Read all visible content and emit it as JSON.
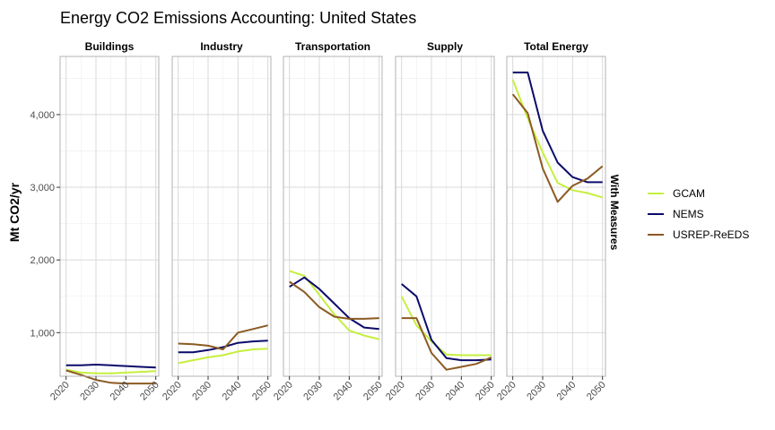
{
  "chart_data": {
    "type": "line",
    "title": "Energy CO2 Emissions Accounting: United States",
    "ylabel": "Mt CO2/yr",
    "row_label": "With Measures",
    "ylim": [
      400,
      4800
    ],
    "y_ticks": [
      1000,
      2000,
      3000,
      4000
    ],
    "y_tick_labels": [
      "1,000",
      "2,000",
      "3,000",
      "4,000"
    ],
    "x_ticks": [
      2020,
      2030,
      2040,
      2050
    ],
    "x_tick_labels": [
      "2020",
      "2030",
      "2040",
      "2050"
    ],
    "xlim": [
      2018,
      2051
    ],
    "grid": true,
    "legend_position": "right",
    "colors": {
      "GCAM": "#c6ef3e",
      "NEMS": "#0b0b6b",
      "USREP-ReEDS": "#8b5a22"
    },
    "panels": [
      {
        "name": "Buildings",
        "series": [
          {
            "name": "GCAM",
            "x": [
              2020,
              2025,
              2030,
              2035,
              2040,
              2045,
              2050
            ],
            "values": [
              490,
              450,
              440,
              440,
              450,
              460,
              470
            ]
          },
          {
            "name": "NEMS",
            "x": [
              2020,
              2025,
              2030,
              2035,
              2040,
              2045,
              2050
            ],
            "values": [
              550,
              550,
              560,
              550,
              540,
              530,
              520
            ]
          },
          {
            "name": "USREP-ReEDS",
            "x": [
              2020,
              2025,
              2030,
              2035,
              2040,
              2045,
              2050
            ],
            "values": [
              480,
              420,
              350,
              310,
              300,
              300,
              300
            ]
          }
        ]
      },
      {
        "name": "Industry",
        "series": [
          {
            "name": "GCAM",
            "x": [
              2020,
              2025,
              2030,
              2035,
              2040,
              2045,
              2050
            ],
            "values": [
              580,
              620,
              660,
              690,
              740,
              770,
              780
            ]
          },
          {
            "name": "NEMS",
            "x": [
              2020,
              2025,
              2030,
              2035,
              2040,
              2045,
              2050
            ],
            "values": [
              730,
              730,
              760,
              800,
              860,
              880,
              890
            ]
          },
          {
            "name": "USREP-ReEDS",
            "x": [
              2020,
              2025,
              2030,
              2035,
              2040,
              2045,
              2050
            ],
            "values": [
              850,
              840,
              820,
              770,
              1000,
              1050,
              1100
            ]
          }
        ]
      },
      {
        "name": "Transportation",
        "series": [
          {
            "name": "GCAM",
            "x": [
              2020,
              2025,
              2030,
              2035,
              2040,
              2045,
              2050
            ],
            "values": [
              1850,
              1780,
              1520,
              1250,
              1030,
              960,
              910
            ]
          },
          {
            "name": "NEMS",
            "x": [
              2020,
              2025,
              2030,
              2035,
              2040,
              2045,
              2050
            ],
            "values": [
              1630,
              1760,
              1600,
              1400,
              1200,
              1070,
              1050
            ]
          },
          {
            "name": "USREP-ReEDS",
            "x": [
              2020,
              2025,
              2030,
              2035,
              2040,
              2045,
              2050
            ],
            "values": [
              1700,
              1560,
              1350,
              1220,
              1190,
              1190,
              1200
            ]
          }
        ]
      },
      {
        "name": "Supply",
        "series": [
          {
            "name": "GCAM",
            "x": [
              2020,
              2025,
              2030,
              2035,
              2040,
              2045,
              2050
            ],
            "values": [
              1500,
              1100,
              880,
              700,
              690,
              690,
              690
            ]
          },
          {
            "name": "NEMS",
            "x": [
              2020,
              2025,
              2030,
              2035,
              2040,
              2045,
              2050
            ],
            "values": [
              1670,
              1500,
              900,
              650,
              620,
              620,
              630
            ]
          },
          {
            "name": "USREP-ReEDS",
            "x": [
              2020,
              2025,
              2030,
              2035,
              2040,
              2045,
              2050
            ],
            "values": [
              1200,
              1200,
              720,
              490,
              530,
              570,
              660
            ]
          }
        ]
      },
      {
        "name": "Total Energy",
        "series": [
          {
            "name": "GCAM",
            "x": [
              2020,
              2025,
              2030,
              2035,
              2040,
              2045,
              2050
            ],
            "values": [
              4480,
              3950,
              3480,
              3060,
              2960,
              2920,
              2860
            ]
          },
          {
            "name": "NEMS",
            "x": [
              2020,
              2025,
              2030,
              2035,
              2040,
              2045,
              2050
            ],
            "values": [
              4580,
              4580,
              3780,
              3340,
              3140,
              3070,
              3070
            ]
          },
          {
            "name": "USREP-ReEDS",
            "x": [
              2020,
              2025,
              2030,
              2035,
              2040,
              2045,
              2050
            ],
            "values": [
              4280,
              4020,
              3260,
              2800,
              3020,
              3120,
              3290
            ]
          }
        ]
      }
    ],
    "legend": [
      "GCAM",
      "NEMS",
      "USREP-ReEDS"
    ]
  }
}
